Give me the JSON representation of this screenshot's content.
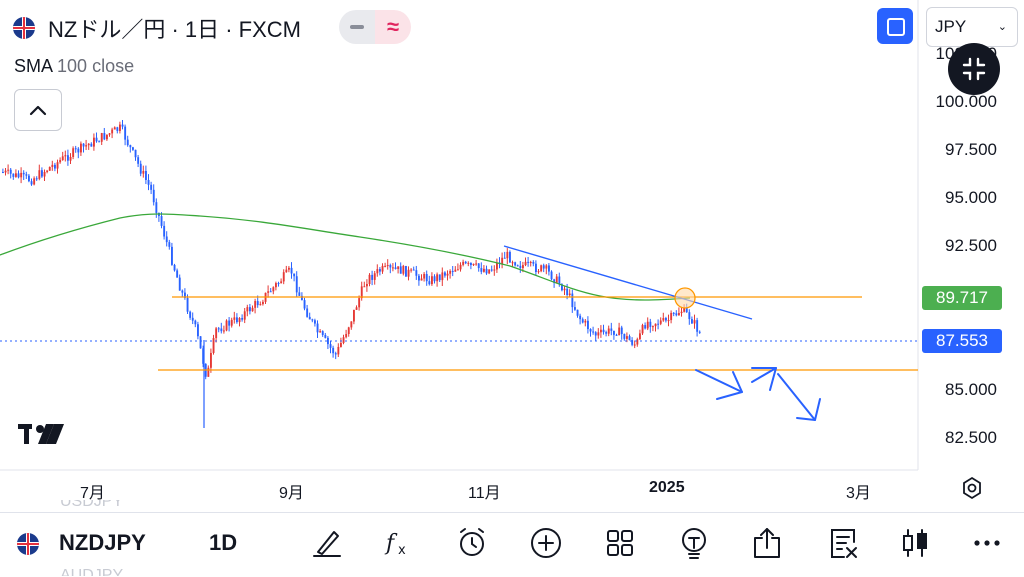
{
  "header": {
    "title": "NZドル／円 · 1日 · FXCM",
    "currency": "JPY"
  },
  "indicator": {
    "name": "SMA",
    "params": "100 close"
  },
  "price_axis": {
    "labels": [
      "100.000",
      "97.500",
      "95.000",
      "92.500",
      "85.000",
      "82.500"
    ],
    "partial_top_label": "102.500"
  },
  "price_tags": [
    {
      "value": "89.717",
      "color": "#4caf50"
    },
    {
      "value": "87.553",
      "color": "#2962ff"
    }
  ],
  "time_axis": {
    "labels": [
      "7月",
      "9月",
      "11月",
      "2025",
      "3月"
    ]
  },
  "bottom_bar": {
    "symbol": "NZDJPY",
    "timeframe": "1D",
    "ghost_top": "USDJPY",
    "ghost_bottom": "AUDJPY"
  },
  "icons": [
    "flag-icon",
    "chart-style-icon",
    "fullscreen-icon",
    "chevron-down-icon",
    "collapse-icon",
    "chevron-up-icon",
    "tradingview-logo",
    "settings-icon",
    "draw-icon",
    "fx-icon",
    "alert-icon",
    "plus-icon",
    "grid-icon",
    "idea-icon",
    "share-icon",
    "news-icon",
    "candles-icon",
    "more-icon"
  ],
  "colors": {
    "up": "#e53935",
    "down": "#2962ff",
    "sma": "#3aa83a",
    "support": "#ff9800",
    "trendline": "#2962ff",
    "accent": "#2962ff"
  },
  "chart_data": {
    "type": "candlestick",
    "symbol": "NZDJPY",
    "timeframe": "1D",
    "price_range": [
      81.5,
      103
    ],
    "current_price": 87.553,
    "sma_value": 89.717,
    "horizontal_levels": [
      89.5,
      86.1
    ],
    "key_points": [
      {
        "month": "2024-06",
        "price": 96.5
      },
      {
        "month": "2024-07",
        "price": 99.0
      },
      {
        "month": "2024-08",
        "price": 83.0
      },
      {
        "month": "2024-09",
        "price": 91.5
      },
      {
        "month": "2024-09",
        "price": 86.6
      },
      {
        "month": "2024-10",
        "price": 91.5
      },
      {
        "month": "2024-11",
        "price": 92.5
      },
      {
        "month": "2024-12",
        "price": 87.5
      },
      {
        "month": "2025-01",
        "price": 87.553
      }
    ]
  }
}
